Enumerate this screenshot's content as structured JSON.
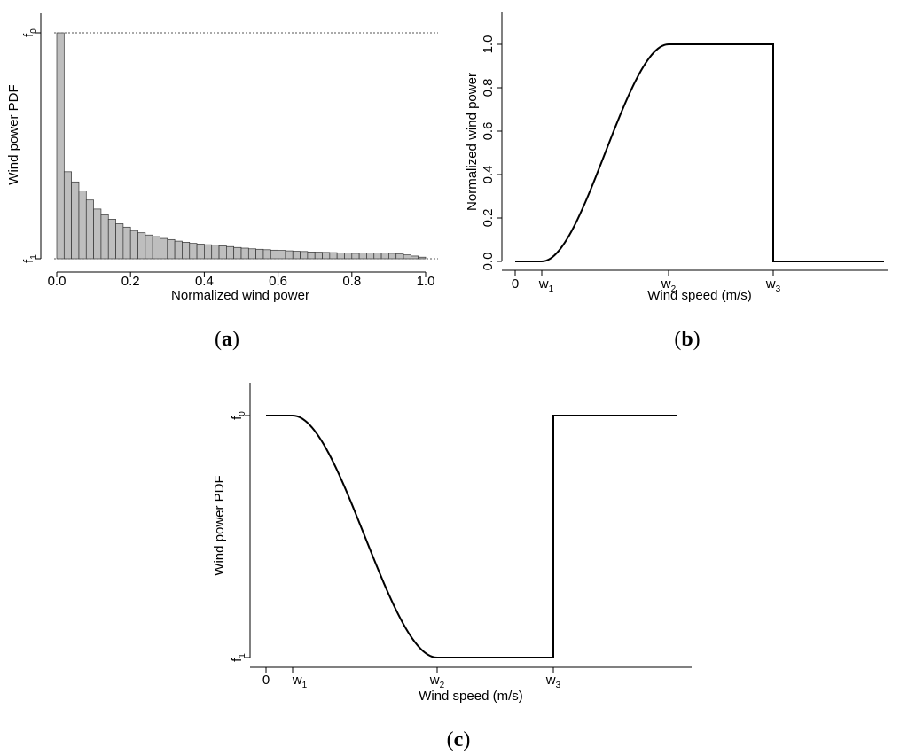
{
  "panels": [
    {
      "open": "(",
      "letter": "a",
      "close": ")"
    },
    {
      "open": "(",
      "letter": "b",
      "close": ")"
    },
    {
      "open": "(",
      "letter": "c",
      "close": ")"
    }
  ],
  "chart_data": [
    {
      "type": "bar",
      "panel": "a",
      "xlabel": "Normalized wind power",
      "ylabel": "Wind power PDF",
      "xlim": [
        0.0,
        1.0
      ],
      "x_ticks": [
        "0.0",
        "0.2",
        "0.4",
        "0.6",
        "0.8",
        "1.0"
      ],
      "y_ticks": [
        {
          "base": "f",
          "sub": "1",
          "value": 0.0
        },
        {
          "base": "f",
          "sub": "0",
          "value": 1.0
        }
      ],
      "reference_lines": [
        "f0",
        "f1"
      ],
      "bin_width": 0.02,
      "values": [
        1.0,
        0.385,
        0.34,
        0.3,
        0.26,
        0.22,
        0.195,
        0.175,
        0.155,
        0.14,
        0.125,
        0.115,
        0.105,
        0.098,
        0.09,
        0.085,
        0.078,
        0.073,
        0.068,
        0.065,
        0.062,
        0.06,
        0.057,
        0.054,
        0.05,
        0.047,
        0.044,
        0.042,
        0.04,
        0.038,
        0.037,
        0.035,
        0.033,
        0.032,
        0.03,
        0.029,
        0.028,
        0.027,
        0.026,
        0.025,
        0.024,
        0.025,
        0.026,
        0.026,
        0.026,
        0.024,
        0.021,
        0.017,
        0.012,
        0.007
      ],
      "bar_color": "#bebebe",
      "grid": false
    },
    {
      "type": "line",
      "panel": "b",
      "xlabel": "Wind speed (m/s)",
      "ylabel": "Normalized wind power",
      "ylim": [
        0.0,
        1.0
      ],
      "y_ticks": [
        "0.0",
        "0.2",
        "0.4",
        "0.6",
        "0.8",
        "1.0"
      ],
      "x_ticks": [
        {
          "base": "0",
          "sub": "",
          "at": "0"
        },
        {
          "base": "w",
          "sub": "1",
          "at": "w1"
        },
        {
          "base": "w",
          "sub": "2",
          "at": "w2"
        },
        {
          "base": "w",
          "sub": "3",
          "at": "w3"
        }
      ],
      "series": [
        {
          "segments": [
            "0 from 0 to w1",
            "smooth rise from w1 to w2",
            "1.0 from w2 to w3",
            "drop to 0 at w3",
            "0 beyond w3"
          ]
        }
      ],
      "grid": false
    },
    {
      "type": "line",
      "panel": "c",
      "xlabel": "Wind speed (m/s)",
      "ylabel": "Wind power PDF",
      "y_ticks": [
        {
          "base": "f",
          "sub": "1",
          "value": 0.0
        },
        {
          "base": "f",
          "sub": "0",
          "value": 1.0
        }
      ],
      "x_ticks": [
        {
          "base": "0",
          "sub": "",
          "at": "0"
        },
        {
          "base": "w",
          "sub": "1",
          "at": "w1"
        },
        {
          "base": "w",
          "sub": "2",
          "at": "w2"
        },
        {
          "base": "w",
          "sub": "3",
          "at": "w3"
        }
      ],
      "series": [
        {
          "segments": [
            "f0 from 0 to w1",
            "smooth fall from w1 to w2",
            "f1 from w2 to w3",
            "jump to f0 at w3",
            "f0 beyond w3"
          ]
        }
      ],
      "grid": false
    }
  ]
}
